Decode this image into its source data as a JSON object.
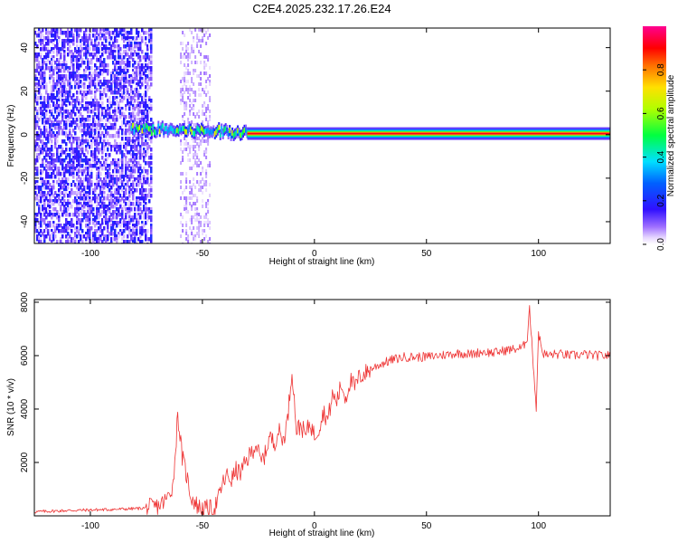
{
  "figure": {
    "title": "C2E4.2025.232.17.26.E24"
  },
  "chart_data": [
    {
      "type": "heatmap",
      "title": "C2E4.2025.232.17.26.E24",
      "xlabel": "Height of straight line (km)",
      "ylabel": "Frequency (Hz)",
      "xlim": [
        -125,
        132
      ],
      "ylim": [
        -50,
        49
      ],
      "xticks": [
        -100,
        -50,
        0,
        50,
        100
      ],
      "xtick_labels": [
        "-100",
        "-50",
        "0",
        "50",
        "100"
      ],
      "yticks": [
        -40,
        -20,
        0,
        20,
        40
      ],
      "ytick_labels": [
        "-40",
        "-20",
        "0",
        "20",
        "40"
      ],
      "grid": false,
      "colormap": "hsv rainbow (purple-blue-cyan-green-yellow-red-magenta)",
      "colorbar": {
        "label": "Normalized spectral amplitude",
        "range": [
          0,
          1
        ],
        "ticks": [
          0.0,
          0.2,
          0.4,
          0.6,
          0.8
        ],
        "tick_labels": [
          "0.0",
          "0.2",
          "0.4",
          "0.6",
          "0.8"
        ]
      },
      "features": [
        {
          "name": "scattered low-amplitude noise",
          "x_range": [
            -125,
            -73
          ],
          "freq_range": [
            -50,
            49
          ],
          "amplitude": 0.1
        },
        {
          "name": "sparse noise band",
          "x_range": [
            -60,
            -47
          ],
          "freq_range": [
            -50,
            49
          ],
          "amplitude": 0.05
        },
        {
          "name": "emerging signal near 0 Hz",
          "x_range": [
            -82,
            -30
          ],
          "freq": 2,
          "amplitude": 0.5
        },
        {
          "name": "strong narrow line at 0 Hz",
          "x_range": [
            -30,
            132
          ],
          "freq": 0.5,
          "amplitude": 1.0
        }
      ]
    },
    {
      "type": "line",
      "title": "",
      "xlabel": "Height of straight line (km)",
      "ylabel": "SNR (10 * v/v)",
      "xlim": [
        -125,
        132
      ],
      "ylim": [
        0,
        8100
      ],
      "xticks": [
        -100,
        -50,
        0,
        50,
        100
      ],
      "xtick_labels": [
        "-100",
        "-50",
        "0",
        "50",
        "100"
      ],
      "yticks": [
        2000,
        4000,
        6000,
        8000
      ],
      "ytick_labels": [
        "2000",
        "4000",
        "6000",
        "8000"
      ],
      "grid": false,
      "color": "#ee3333",
      "series": [
        {
          "name": "",
          "x": [
            -125,
            -110,
            -100,
            -90,
            -80,
            -75,
            -70,
            -66,
            -63,
            -61,
            -59,
            -57,
            -55,
            -52,
            -49,
            -47,
            -45,
            -43,
            -41,
            -39,
            -37,
            -35,
            -33,
            -30,
            -28,
            -26,
            -24,
            -22,
            -20,
            -18,
            -16,
            -14,
            -12,
            -10,
            -8,
            -6,
            -4,
            -2,
            0,
            2,
            4,
            6,
            8,
            10,
            12,
            14,
            16,
            18,
            20,
            22,
            25,
            30,
            35,
            40,
            45,
            50,
            55,
            60,
            65,
            70,
            75,
            80,
            85,
            90,
            93,
            95,
            96,
            97,
            98,
            99,
            100,
            101,
            102,
            104,
            106,
            110,
            115,
            120,
            125,
            132
          ],
          "y": [
            150,
            200,
            220,
            240,
            270,
            300,
            350,
            600,
            1200,
            3800,
            2200,
            1500,
            700,
            350,
            250,
            280,
            250,
            600,
            1200,
            1500,
            1350,
            1700,
            1600,
            2100,
            2400,
            2700,
            2000,
            2300,
            3000,
            2700,
            3200,
            2800,
            3600,
            5500,
            3200,
            3400,
            3000,
            3500,
            3000,
            3300,
            3900,
            3600,
            4500,
            4300,
            4900,
            4400,
            5100,
            4800,
            5200,
            5300,
            5500,
            5700,
            5850,
            5950,
            5950,
            5950,
            6000,
            6050,
            6100,
            6050,
            6150,
            6100,
            6200,
            6250,
            6300,
            6700,
            7800,
            6500,
            5300,
            4000,
            6900,
            6400,
            6100,
            6000,
            6050,
            6050,
            6000,
            6050,
            6000,
            6000
          ]
        }
      ]
    }
  ]
}
